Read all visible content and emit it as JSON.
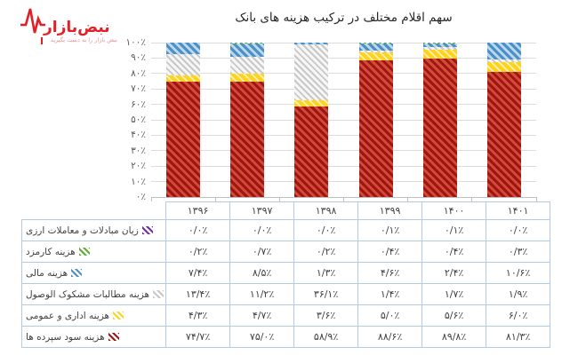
{
  "logo": {
    "brand": "نبض‌بازار",
    "tagline": "نبض بازار را به دست بگیرید",
    "brand_color": "#e01f26"
  },
  "chart": {
    "title": "سهم اقلام مختلف در ترکیب هزینه های بانک",
    "y_ticks": [
      "۱۰۰٪",
      "۹۰٪",
      "۸۰٪",
      "۷۰٪",
      "۶۰٪",
      "۵۰٪",
      "۴۰٪",
      "۳۰٪",
      "۲۰٪",
      "۱۰٪",
      "۰٪"
    ]
  },
  "chart_data": {
    "type": "bar",
    "subtype": "stacked-100-percent",
    "title": "سهم اقلام مختلف در ترکیب هزینه های بانک",
    "xlabel": "",
    "ylabel": "",
    "ylim": [
      0,
      100
    ],
    "grid": true,
    "legend_position": "table-below",
    "categories": [
      "۱۳۹۶",
      "۱۳۹۷",
      "۱۳۹۸",
      "۱۳۹۹",
      "۱۴۰۰",
      "۱۴۰۱"
    ],
    "stack_order_bottom_to_top": [
      "sood",
      "edari",
      "mashkook",
      "mali",
      "karmozd",
      "arzi"
    ],
    "series": [
      {
        "key": "arzi",
        "name": "زیان مبادلات و معاملات ارزی",
        "color": "#7030a0",
        "color2": "#ffffff",
        "values": [
          0.0,
          0.0,
          0.0,
          0.1,
          0.1,
          0.0
        ],
        "labels": [
          "۰/۰٪",
          "۰/۰٪",
          "۰/۰٪",
          "۰/۱٪",
          "۰/۱٪",
          "۰/۰٪"
        ]
      },
      {
        "key": "karmozd",
        "name": "هزینه کارمزد",
        "color": "#5bb033",
        "color2": "#ffffff",
        "values": [
          0.2,
          0.7,
          0.2,
          0.4,
          0.4,
          0.3
        ],
        "labels": [
          "۰/۲٪",
          "۰/۷٪",
          "۰/۲٪",
          "۰/۴٪",
          "۰/۴٪",
          "۰/۳٪"
        ]
      },
      {
        "key": "mali",
        "name": "هزینه مالی",
        "color": "#4e90c5",
        "color2": "#bad8ee",
        "values": [
          7.4,
          8.5,
          1.3,
          4.6,
          2.4,
          10.6
        ],
        "labels": [
          "۷/۴٪",
          "۸/۵٪",
          "۱/۳٪",
          "۴/۶٪",
          "۲/۴٪",
          "۱۰/۶٪"
        ]
      },
      {
        "key": "mashkook",
        "name": "هزینه مطالبات مشکوک الوصول",
        "color": "#c8c8c8",
        "color2": "#f6f6f6",
        "values": [
          13.4,
          11.2,
          36.1,
          1.4,
          1.7,
          1.9
        ],
        "labels": [
          "۱۳/۴٪",
          "۱۱/۲٪",
          "۳۶/۱٪",
          "۱/۴٪",
          "۱/۷٪",
          "۱/۹٪"
        ]
      },
      {
        "key": "edari",
        "name": "هزینه اداری و عمومی",
        "color": "#ffd21f",
        "color2": "#fff3b2",
        "values": [
          4.3,
          4.7,
          3.6,
          5.0,
          5.6,
          6.0
        ],
        "labels": [
          "۴/۳٪",
          "۴/۷٪",
          "۳/۶٪",
          "۵/۰٪",
          "۵/۶٪",
          "۶/۰٪"
        ]
      },
      {
        "key": "sood",
        "name": "هزینه سود سپرده ها",
        "color": "#9e1512",
        "color2": "#d24a38",
        "values": [
          74.7,
          75.0,
          58.9,
          88.6,
          89.8,
          81.3
        ],
        "labels": [
          "۷۴/۷٪",
          "۷۵/۰٪",
          "۵۸/۹٪",
          "۸۸/۶٪",
          "۸۹/۸٪",
          "۸۱/۳٪"
        ]
      }
    ]
  }
}
